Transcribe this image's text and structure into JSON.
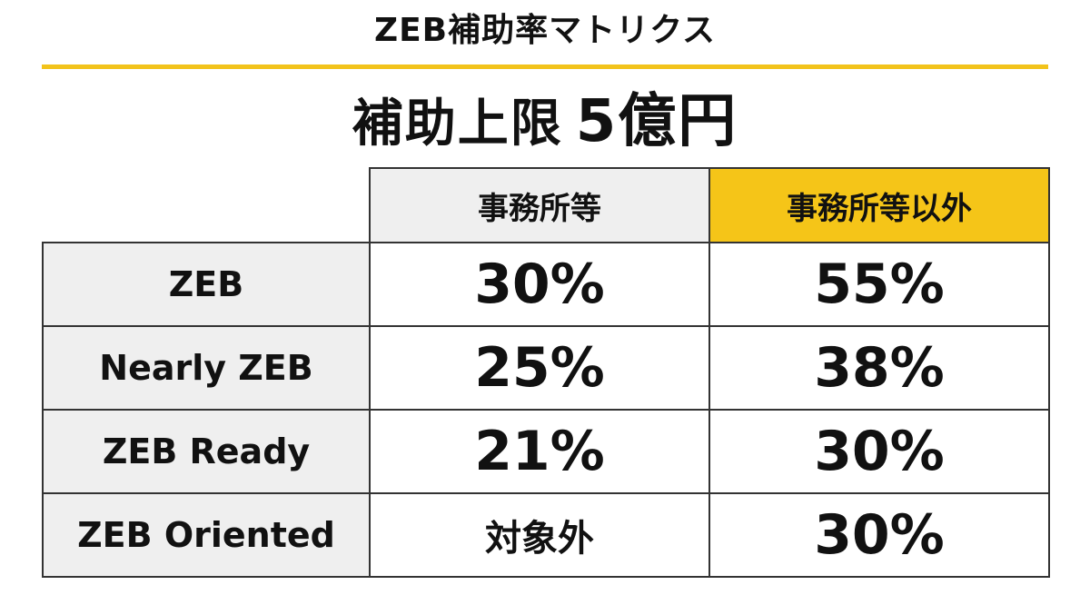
{
  "title": "ZEB補助率マトリクス",
  "limit": {
    "label": "補助上限",
    "value": "5億円"
  },
  "columns": [
    "事務所等",
    "事務所等以外"
  ],
  "rows": [
    {
      "label": "ZEB",
      "office": "30%",
      "other": "55%"
    },
    {
      "label": "Nearly ZEB",
      "office": "25%",
      "other": "38%"
    },
    {
      "label": "ZEB Ready",
      "office": "21%",
      "other": "30%"
    },
    {
      "label": "ZEB Oriented",
      "office": "対象外",
      "other": "30%"
    }
  ],
  "colors": {
    "accent": "#f5c518",
    "rule": "#f2c31b",
    "header_gray": "#efefef",
    "border": "#333333"
  }
}
